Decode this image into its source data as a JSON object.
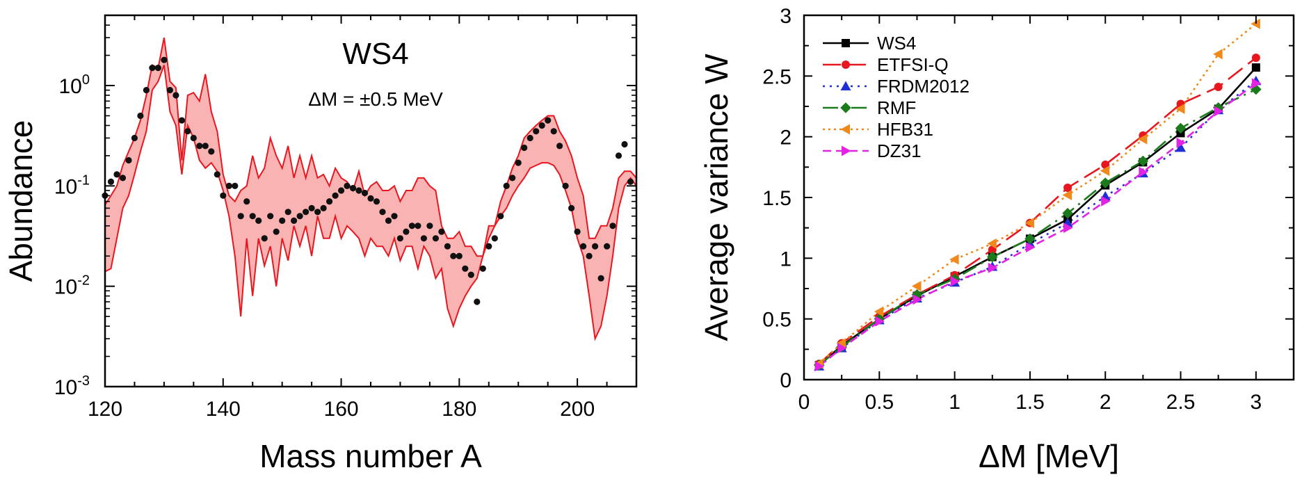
{
  "chart_data": [
    {
      "type": "area",
      "title": "",
      "xlabel": "Mass number A",
      "ylabel": "Abundance",
      "xlim": [
        120,
        210
      ],
      "ylim_log10": [
        -3,
        0.7
      ],
      "yscale": "log",
      "grid": false,
      "annotations": [
        "WS4",
        "ΔM = ±0.5 MeV"
      ],
      "x_ticks": [
        {
          "value": 120,
          "label": "120"
        },
        {
          "value": 140,
          "label": "140"
        },
        {
          "value": 160,
          "label": "160"
        },
        {
          "value": 180,
          "label": "180"
        },
        {
          "value": 200,
          "label": "200"
        }
      ],
      "y_ticks": [
        {
          "exp": 0,
          "base": "10",
          "sup": "0"
        },
        {
          "exp": -1,
          "base": "10",
          "sup": "-1"
        },
        {
          "exp": -2,
          "base": "10",
          "sup": "-2"
        },
        {
          "exp": -3,
          "base": "10",
          "sup": "-3"
        }
      ],
      "band": {
        "color": "#e8161e",
        "fill": "#f9b3b3",
        "x": [
          120,
          121,
          122,
          123,
          124,
          125,
          126,
          127,
          128,
          129,
          130,
          131,
          132,
          133,
          134,
          135,
          136,
          137,
          138,
          139,
          140,
          141,
          142,
          143,
          144,
          145,
          146,
          147,
          148,
          149,
          150,
          151,
          152,
          153,
          154,
          155,
          156,
          157,
          158,
          159,
          160,
          161,
          162,
          163,
          164,
          165,
          166,
          167,
          168,
          169,
          170,
          171,
          172,
          173,
          174,
          175,
          176,
          177,
          178,
          179,
          180,
          181,
          182,
          183,
          184,
          185,
          186,
          187,
          188,
          189,
          190,
          191,
          192,
          193,
          194,
          195,
          196,
          197,
          198,
          199,
          200,
          201,
          202,
          203,
          204,
          205,
          206,
          207,
          208,
          209,
          210
        ],
        "upper": [
          0.065,
          0.08,
          0.1,
          0.16,
          0.22,
          0.3,
          0.45,
          0.8,
          1.6,
          1.5,
          3.0,
          1.1,
          0.95,
          0.18,
          0.8,
          0.85,
          0.7,
          1.3,
          0.55,
          0.35,
          0.13,
          0.08,
          0.07,
          0.09,
          0.1,
          0.2,
          0.12,
          0.15,
          0.3,
          0.2,
          0.15,
          0.25,
          0.12,
          0.2,
          0.12,
          0.2,
          0.12,
          0.13,
          0.1,
          0.15,
          0.12,
          0.11,
          0.09,
          0.14,
          0.08,
          0.1,
          0.11,
          0.09,
          0.09,
          0.1,
          0.07,
          0.09,
          0.09,
          0.12,
          0.12,
          0.1,
          0.09,
          0.04,
          0.03,
          0.03,
          0.035,
          0.025,
          0.025,
          0.02,
          0.02,
          0.04,
          0.04,
          0.07,
          0.1,
          0.15,
          0.2,
          0.3,
          0.35,
          0.4,
          0.45,
          0.5,
          0.5,
          0.35,
          0.28,
          0.2,
          0.12,
          0.08,
          0.03,
          0.03,
          0.04,
          0.04,
          0.06,
          0.12,
          0.14,
          0.14,
          0.12
        ],
        "lower": [
          0.014,
          0.015,
          0.03,
          0.06,
          0.08,
          0.13,
          0.22,
          0.35,
          0.9,
          1.1,
          1.6,
          0.55,
          0.4,
          0.13,
          0.4,
          0.3,
          0.18,
          0.15,
          0.17,
          0.14,
          0.09,
          0.05,
          0.02,
          0.005,
          0.03,
          0.008,
          0.03,
          0.016,
          0.025,
          0.01,
          0.03,
          0.018,
          0.04,
          0.025,
          0.04,
          0.02,
          0.05,
          0.03,
          0.03,
          0.05,
          0.03,
          0.04,
          0.035,
          0.03,
          0.02,
          0.03,
          0.025,
          0.025,
          0.02,
          0.03,
          0.018,
          0.025,
          0.025,
          0.015,
          0.025,
          0.02,
          0.012,
          0.015,
          0.006,
          0.004,
          0.006,
          0.008,
          0.01,
          0.012,
          0.02,
          0.03,
          0.04,
          0.05,
          0.06,
          0.08,
          0.1,
          0.12,
          0.15,
          0.16,
          0.17,
          0.17,
          0.16,
          0.13,
          0.09,
          0.06,
          0.03,
          0.02,
          0.008,
          0.003,
          0.004,
          0.008,
          0.02,
          0.06,
          0.1,
          0.12,
          0.1
        ]
      },
      "points": {
        "color": "#111111",
        "x": [
          120,
          121,
          122,
          123,
          124,
          125,
          126,
          127,
          128,
          129,
          130,
          131,
          132,
          133,
          134,
          135,
          136,
          137,
          138,
          139,
          140,
          141,
          142,
          143,
          144,
          145,
          146,
          147,
          148,
          149,
          150,
          151,
          152,
          153,
          154,
          155,
          156,
          157,
          158,
          159,
          160,
          161,
          162,
          163,
          164,
          165,
          166,
          167,
          168,
          169,
          170,
          171,
          172,
          173,
          174,
          175,
          176,
          177,
          178,
          179,
          180,
          181,
          182,
          183,
          184,
          185,
          186,
          187,
          188,
          189,
          190,
          191,
          192,
          193,
          194,
          195,
          196,
          197,
          198,
          199,
          200,
          201,
          202,
          203,
          204,
          205,
          206,
          207,
          208,
          209
        ],
        "y": [
          0.08,
          0.11,
          0.13,
          0.12,
          0.18,
          0.3,
          0.5,
          0.9,
          1.5,
          1.5,
          1.8,
          0.9,
          0.8,
          0.45,
          0.35,
          0.3,
          0.25,
          0.25,
          0.22,
          0.13,
          0.08,
          0.1,
          0.1,
          0.05,
          0.07,
          0.05,
          0.045,
          0.03,
          0.05,
          0.035,
          0.045,
          0.055,
          0.045,
          0.05,
          0.055,
          0.06,
          0.055,
          0.06,
          0.07,
          0.08,
          0.09,
          0.1,
          0.095,
          0.09,
          0.085,
          0.075,
          0.07,
          0.055,
          0.045,
          0.05,
          0.03,
          0.035,
          0.04,
          0.04,
          0.03,
          0.04,
          0.03,
          0.035,
          0.025,
          0.02,
          0.02,
          0.015,
          0.013,
          0.007,
          0.015,
          0.025,
          0.03,
          0.05,
          0.1,
          0.12,
          0.17,
          0.24,
          0.3,
          0.35,
          0.4,
          0.45,
          0.35,
          0.25,
          0.1,
          0.06,
          0.035,
          0.025,
          0.02,
          0.025,
          0.012,
          0.025,
          0.04,
          0.2,
          0.26,
          0.11
        ]
      }
    },
    {
      "type": "line",
      "title": "",
      "xlabel": "ΔM [MeV]",
      "ylabel": "Average variance W",
      "xlim": [
        0,
        3.25
      ],
      "ylim": [
        0,
        3
      ],
      "grid": false,
      "legend_position": "top-left",
      "x_ticks": [
        {
          "value": 0,
          "label": "0"
        },
        {
          "value": 0.5,
          "label": "0.5"
        },
        {
          "value": 1,
          "label": "1"
        },
        {
          "value": 1.5,
          "label": "1.5"
        },
        {
          "value": 2,
          "label": "2"
        },
        {
          "value": 2.5,
          "label": "2.5"
        },
        {
          "value": 3,
          "label": "3"
        }
      ],
      "y_ticks": [
        {
          "value": 0,
          "label": "0"
        },
        {
          "value": 0.5,
          "label": "0.5"
        },
        {
          "value": 1,
          "label": "1"
        },
        {
          "value": 1.5,
          "label": "1.5"
        },
        {
          "value": 2,
          "label": "2"
        },
        {
          "value": 2.5,
          "label": "2.5"
        },
        {
          "value": 3,
          "label": "3"
        }
      ],
      "x": [
        0.1,
        0.25,
        0.5,
        0.75,
        1.0,
        1.25,
        1.5,
        1.75,
        2.0,
        2.25,
        2.5,
        2.75,
        3.0
      ],
      "series": [
        {
          "name": "WS4",
          "color": "#000000",
          "dash": "",
          "marker": "square",
          "values": [
            0.12,
            0.28,
            0.5,
            0.69,
            0.85,
            1.01,
            1.16,
            1.32,
            1.6,
            1.79,
            2.03,
            2.23,
            2.57
          ]
        },
        {
          "name": "ETFSI-Q",
          "color": "#e8161e",
          "dash": "26 10",
          "marker": "circle",
          "values": [
            0.13,
            0.3,
            0.52,
            0.7,
            0.86,
            1.07,
            1.29,
            1.58,
            1.77,
            2.01,
            2.27,
            2.41,
            2.65
          ]
        },
        {
          "name": "FRDM2012",
          "color": "#1f2fd6",
          "dash": "3 7",
          "marker": "triangle-up",
          "values": [
            0.11,
            0.26,
            0.49,
            0.67,
            0.8,
            0.93,
            1.12,
            1.29,
            1.51,
            1.7,
            1.91,
            2.22,
            2.46
          ]
        },
        {
          "name": "RMF",
          "color": "#1b7a1b",
          "dash": "22 8 3 8",
          "marker": "diamond",
          "values": [
            0.12,
            0.27,
            0.5,
            0.7,
            0.83,
            1.01,
            1.16,
            1.37,
            1.62,
            1.8,
            2.07,
            2.24,
            2.39
          ]
        },
        {
          "name": "HFB31",
          "color": "#f0891b",
          "dash": "3 5",
          "marker": "triangle-left",
          "values": [
            0.13,
            0.3,
            0.56,
            0.77,
            0.99,
            1.12,
            1.29,
            1.52,
            1.72,
            1.98,
            2.23,
            2.68,
            2.93
          ]
        },
        {
          "name": "DZ31",
          "color": "#e323e3",
          "dash": "12 7",
          "marker": "triangle-right",
          "values": [
            0.11,
            0.26,
            0.48,
            0.66,
            0.81,
            0.92,
            1.09,
            1.25,
            1.47,
            1.71,
            1.95,
            2.21,
            2.44
          ]
        }
      ]
    }
  ]
}
